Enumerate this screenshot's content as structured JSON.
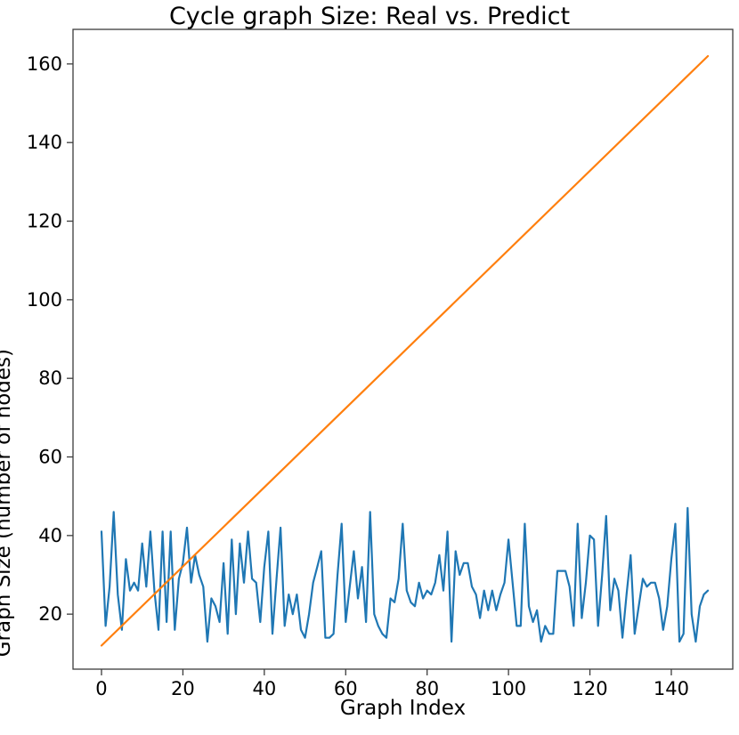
{
  "figure": {
    "title": "Cycle graph Size: Real vs. Predict",
    "xlabel": "Graph Index",
    "ylabel": "Graph Size (number of nodes)"
  },
  "chart_data": {
    "type": "line",
    "title": "Cycle graph Size: Real vs. Predict",
    "xlabel": "Graph Index",
    "ylabel": "Graph Size (number of nodes)",
    "x_ticks": [
      0,
      20,
      40,
      60,
      80,
      100,
      120,
      140
    ],
    "y_ticks": [
      20,
      40,
      60,
      80,
      100,
      120,
      140,
      160
    ],
    "xlim": [
      -7.0,
      155.1
    ],
    "ylim": [
      6.0,
      168.8
    ],
    "grid": false,
    "legend": "none",
    "axis_color": "#3c3c3c",
    "tick_label_color": "#000000",
    "line_width": 2.2,
    "series": [
      {
        "name": "Real",
        "color": "#1f77b4",
        "kind": "points",
        "x_start": 0,
        "x_step": 1,
        "values": [
          41,
          17,
          27,
          46,
          25,
          16,
          34,
          26,
          28,
          26,
          38,
          27,
          41,
          26,
          16,
          41,
          18,
          41,
          16,
          29,
          33,
          42,
          28,
          35,
          30,
          27,
          13,
          24,
          22,
          18,
          33,
          15,
          39,
          20,
          38,
          28,
          41,
          29,
          28,
          18,
          32,
          41,
          15,
          29,
          42,
          17,
          25,
          20,
          25,
          16,
          14,
          20,
          28,
          32,
          36,
          14,
          14,
          15,
          30,
          43,
          18,
          27,
          36,
          24,
          32,
          18,
          46,
          20,
          17,
          15,
          14,
          24,
          23,
          29,
          43,
          26,
          23,
          22,
          28,
          24,
          26,
          25,
          28,
          35,
          26,
          41,
          13,
          36,
          30,
          33,
          33,
          27,
          25,
          19,
          26,
          21,
          26,
          21,
          25,
          28,
          39,
          28,
          17,
          17,
          43,
          22,
          18,
          21,
          13,
          17,
          15,
          15,
          31,
          31,
          31,
          27,
          17,
          43,
          19,
          28,
          40,
          39,
          17,
          30,
          45,
          21,
          29,
          26,
          14,
          25,
          35,
          15,
          22,
          29,
          27,
          28,
          28,
          24,
          16,
          22,
          34,
          43,
          13,
          15,
          47,
          20,
          13,
          22,
          25,
          26
        ]
      },
      {
        "name": "Predict",
        "color": "#ff7f0e",
        "kind": "linear",
        "x_start": 0,
        "x_end": 149,
        "y_start": 12,
        "y_end": 162
      }
    ]
  }
}
